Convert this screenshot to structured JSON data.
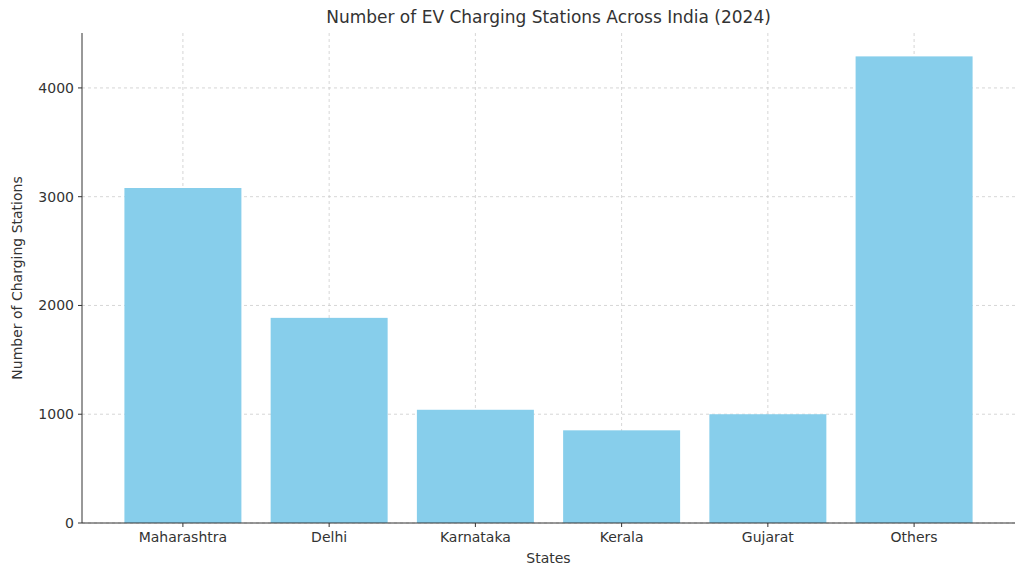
{
  "chart_data": {
    "type": "bar",
    "title": "Number of EV Charging Stations Across India (2024)",
    "x_label": "States",
    "y_label": "Number of Charging Stations",
    "categories": [
      "Maharashtra",
      "Delhi",
      "Karnataka",
      "Kerala",
      "Gujarat",
      "Others"
    ],
    "values": [
      3080,
      1886,
      1041,
      852,
      1000,
      4290
    ],
    "color": "#87ceeb",
    "ylim": [
      0,
      4505
    ],
    "yticks": [
      0,
      1000,
      2000,
      3000,
      4000
    ],
    "grid": true
  }
}
